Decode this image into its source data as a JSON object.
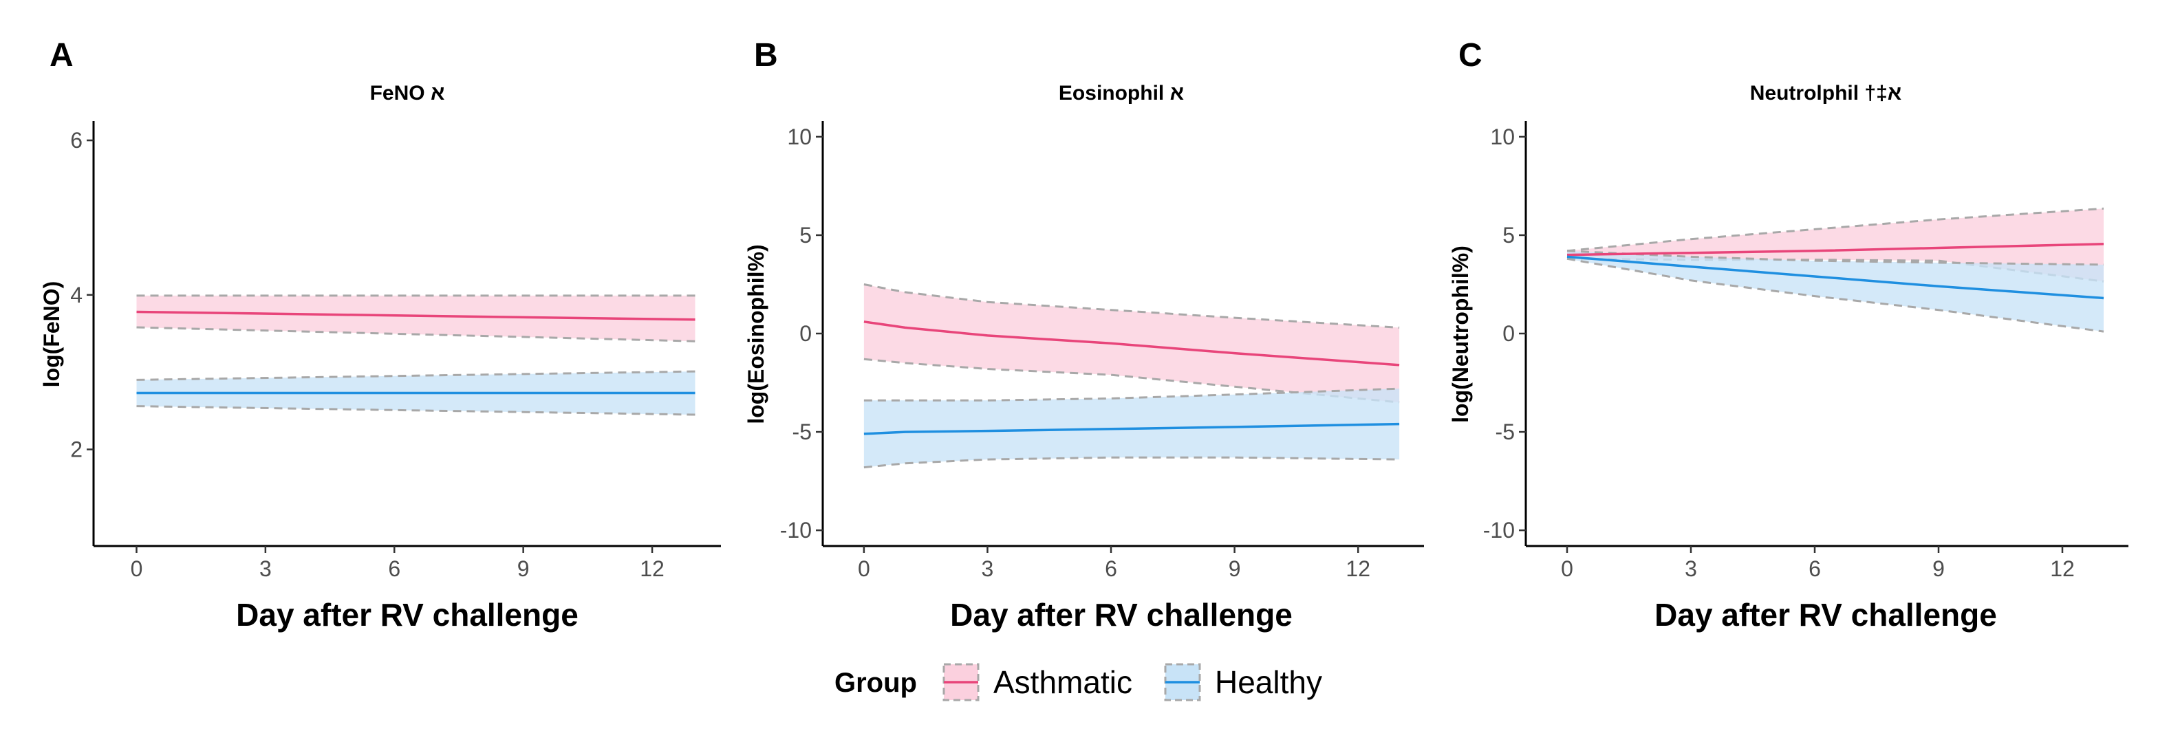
{
  "colors": {
    "asthmatic_line": "#e8457a",
    "asthmatic_fill": "#fbd0de",
    "healthy_line": "#1f8fe0",
    "healthy_fill": "#c8e3f7",
    "ci_border": "#a8a8a8",
    "axis": "#000000"
  },
  "legend": {
    "title": "Group",
    "items": [
      {
        "label": "Asthmatic",
        "series": "asthmatic"
      },
      {
        "label": "Healthy",
        "series": "healthy"
      }
    ]
  },
  "chart_data": [
    {
      "panel": "A",
      "type": "line",
      "title": "FeNO א",
      "xlabel": "Day after RV challenge",
      "ylabel": "log(FeNO)",
      "xlim": [
        -1,
        13.6
      ],
      "ylim": [
        0.75,
        6.25
      ],
      "xticks": [
        0,
        3,
        6,
        9,
        12
      ],
      "yticks": [
        2,
        4,
        6
      ],
      "series": [
        {
          "name": "Asthmatic",
          "key": "asthmatic",
          "x": [
            0,
            13
          ],
          "y": [
            3.78,
            3.68
          ],
          "lower": [
            3.58,
            3.4
          ],
          "upper": [
            3.99,
            3.99
          ]
        },
        {
          "name": "Healthy",
          "key": "healthy",
          "x": [
            0,
            13
          ],
          "y": [
            2.73,
            2.73
          ],
          "lower": [
            2.56,
            2.45
          ],
          "upper": [
            2.9,
            3.01
          ]
        }
      ]
    },
    {
      "panel": "B",
      "type": "line",
      "title": "Eosinophil א",
      "xlabel": "Day after RV challenge",
      "ylabel": "log(Eosinophil%)",
      "xlim": [
        -1,
        13.6
      ],
      "ylim": [
        -10.8,
        10.8
      ],
      "xticks": [
        0,
        3,
        6,
        9,
        12
      ],
      "yticks": [
        -10,
        -5,
        0,
        5,
        10
      ],
      "series": [
        {
          "name": "Asthmatic",
          "key": "asthmatic",
          "x": [
            0,
            1,
            3,
            6,
            9,
            13
          ],
          "y": [
            0.6,
            0.3,
            -0.1,
            -0.5,
            -1.0,
            -1.6
          ],
          "lower": [
            -1.3,
            -1.5,
            -1.8,
            -2.1,
            -2.7,
            -3.5
          ],
          "upper": [
            2.5,
            2.1,
            1.6,
            1.2,
            0.8,
            0.3
          ]
        },
        {
          "name": "Healthy",
          "key": "healthy",
          "x": [
            0,
            1,
            3,
            6,
            9,
            13
          ],
          "y": [
            -5.1,
            -5.0,
            -4.95,
            -4.85,
            -4.75,
            -4.6
          ],
          "lower": [
            -6.8,
            -6.6,
            -6.4,
            -6.3,
            -6.3,
            -6.4
          ],
          "upper": [
            -3.4,
            -3.4,
            -3.4,
            -3.3,
            -3.1,
            -2.8
          ]
        }
      ]
    },
    {
      "panel": "C",
      "type": "line",
      "title": "Neutrolphil †‡א",
      "xlabel": "Day after RV challenge",
      "ylabel": "log(Neutrophil%)",
      "xlim": [
        -1,
        13.6
      ],
      "ylim": [
        -10.8,
        10.8
      ],
      "xticks": [
        0,
        3,
        6,
        9,
        12
      ],
      "yticks": [
        -10,
        -5,
        0,
        5,
        10
      ],
      "series": [
        {
          "name": "Asthmatic",
          "key": "asthmatic",
          "x": [
            0,
            3,
            6,
            9,
            13
          ],
          "y": [
            4.0,
            4.1,
            4.2,
            4.35,
            4.55
          ],
          "lower": [
            3.8,
            3.75,
            3.75,
            3.7,
            2.65
          ],
          "upper": [
            4.2,
            4.8,
            5.3,
            5.8,
            6.35
          ]
        },
        {
          "name": "Healthy",
          "key": "healthy",
          "x": [
            0,
            3,
            6,
            9,
            13
          ],
          "y": [
            3.9,
            3.4,
            2.9,
            2.4,
            1.8
          ],
          "lower": [
            3.8,
            2.7,
            1.9,
            1.2,
            0.1
          ],
          "upper": [
            4.2,
            3.9,
            3.7,
            3.6,
            3.5
          ]
        }
      ]
    }
  ]
}
